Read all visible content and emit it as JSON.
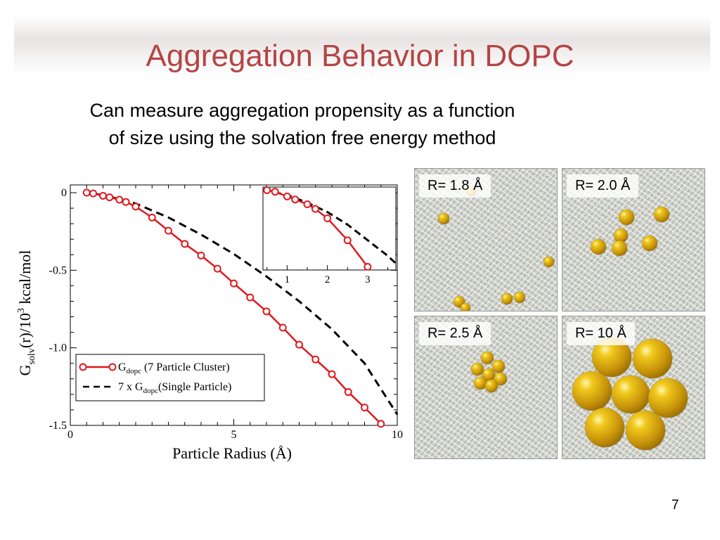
{
  "title": "Aggregation Behavior in DOPC",
  "subtitle_lines": [
    "Can measure aggregation propensity as a function",
    "of size using the solvation free energy method"
  ],
  "page_number": "7",
  "colors": {
    "title": "#b44545",
    "series_red": "#e0191e",
    "series_black": "#000000",
    "sphere": "#d4a10c"
  },
  "chart_data": {
    "type": "line",
    "xlabel": "Particle Radius (Å)",
    "ylabel": {
      "base": "G",
      "sub": "solv",
      "middle": "(r)/10",
      "sup": "3",
      "tail": " kcal/mol"
    },
    "xlim": [
      0,
      10
    ],
    "ylim": [
      -1.5,
      0.05
    ],
    "x_ticks": [
      "0",
      "5",
      "10"
    ],
    "y_ticks": [
      "0",
      "-0.5",
      "-1.0",
      "-1.5"
    ],
    "legend_position": "bottom-left",
    "series": [
      {
        "legend": {
          "prefix": "G",
          "sub": "dopc",
          "suffix": " (7 Particle Cluster)"
        },
        "style": "solid-circles",
        "x": [
          0.5,
          0.7,
          1.0,
          1.2,
          1.5,
          1.7,
          2.0,
          2.5,
          3.0,
          3.5,
          4.0,
          4.5,
          5.0,
          5.5,
          6.0,
          6.5,
          7.0,
          7.5,
          8.0,
          8.5,
          9.0,
          9.5
        ],
        "y": [
          0.0,
          -0.005,
          -0.02,
          -0.03,
          -0.045,
          -0.06,
          -0.09,
          -0.16,
          -0.245,
          -0.33,
          -0.405,
          -0.49,
          -0.585,
          -0.675,
          -0.765,
          -0.87,
          -0.98,
          -1.075,
          -1.17,
          -1.285,
          -1.385,
          -1.49
        ]
      },
      {
        "legend": {
          "prefix": "7 x G",
          "sub": "dopc",
          "suffix": "(Single Particle)"
        },
        "style": "dashed",
        "x": [
          0.4,
          1.0,
          2.0,
          3.0,
          4.0,
          5.0,
          6.0,
          7.0,
          8.0,
          9.0,
          10.0
        ],
        "y": [
          0.0,
          -0.015,
          -0.07,
          -0.16,
          -0.27,
          -0.395,
          -0.54,
          -0.7,
          -0.88,
          -1.1,
          -1.43
        ]
      }
    ],
    "inset": {
      "xlim": [
        0.4,
        3.7
      ],
      "ylim": [
        -0.255,
        0.01
      ],
      "x_ticks": [
        "1",
        "2",
        "3"
      ],
      "red_x": [
        0.5,
        0.7,
        1.0,
        1.2,
        1.5,
        1.7,
        2.0,
        2.5,
        3.0,
        3.5
      ],
      "red_y": [
        0.0,
        -0.005,
        -0.02,
        -0.03,
        -0.045,
        -0.06,
        -0.09,
        -0.16,
        -0.245,
        -0.33
      ],
      "dash_x": [
        0.4,
        1.0,
        1.5,
        2.0,
        2.5,
        3.0,
        3.5,
        4.0
      ],
      "dash_y": [
        0.0,
        -0.015,
        -0.04,
        -0.07,
        -0.11,
        -0.16,
        -0.21,
        -0.27
      ]
    }
  },
  "panels": [
    {
      "label": "R= 1.8 Å"
    },
    {
      "label": "R= 2.0 Å"
    },
    {
      "label": "R= 2.5 Å"
    },
    {
      "label": "R= 10 Å"
    }
  ]
}
